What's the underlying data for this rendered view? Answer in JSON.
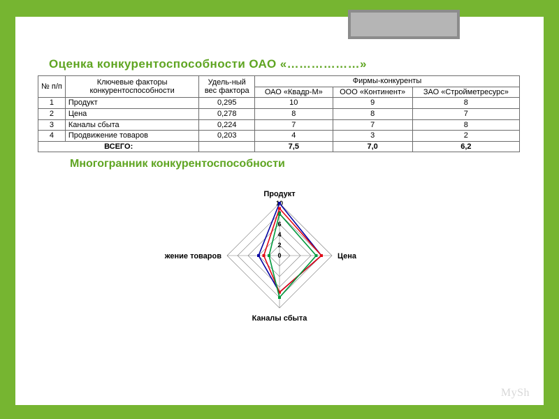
{
  "accent_color": "#5fa522",
  "frame_color": "#76b531",
  "title": "Оценка конкурентоспособности ОАО «………………»",
  "subtitle": "Многогранник конкурентоспособности",
  "watermark": "MySh",
  "table": {
    "headers": {
      "n": "№ п/п",
      "factor": "Ключевые факторы конкурентоспособности",
      "weight": "Удель-ный вес фактора",
      "comp_group": "Фирмы-конкуренты",
      "firm1": "ОАО «Квадр-М»",
      "firm2": "ООО «Континент»",
      "firm3": "ЗАО «Стройметресурс»"
    },
    "rows": [
      {
        "n": "1",
        "factor": "Продукт",
        "weight": "0,295",
        "v1": "10",
        "v2": "9",
        "v3": "8"
      },
      {
        "n": "2",
        "factor": "Цена",
        "weight": "0,278",
        "v1": "8",
        "v2": "8",
        "v3": "7"
      },
      {
        "n": "3",
        "factor": "Каналы сбыта",
        "weight": "0,224",
        "v1": "7",
        "v2": "7",
        "v3": "8"
      },
      {
        "n": "4",
        "factor": "Продвижение товаров",
        "weight": "0,203",
        "v1": "4",
        "v2": "3",
        "v3": "2"
      }
    ],
    "total": {
      "label": "ВСЕГО:",
      "weight": "",
      "v1": "7,5",
      "v2": "7,0",
      "v3": "6,2"
    }
  },
  "radar": {
    "type": "radar",
    "axes": [
      "Продукт",
      "Цена",
      "Каналы сбыта",
      "Продвижение товаров"
    ],
    "max": 10,
    "ticks": [
      0,
      2,
      4,
      6,
      8,
      10
    ],
    "grid_color": "#7a7a7a",
    "background_color": "#ffffff",
    "marker_size": 4,
    "line_width": 1.6,
    "label_fontsize": 11,
    "tick_fontsize": 9,
    "series": [
      {
        "name": "ОАО «Квадр-М»",
        "color": "#0504a2",
        "values": [
          10,
          8,
          7,
          4
        ]
      },
      {
        "name": "ООО «Континент»",
        "color": "#e30613",
        "values": [
          9,
          8,
          7,
          3
        ]
      },
      {
        "name": "ЗАО «Стройметресурс»",
        "color": "#009a3d",
        "values": [
          8,
          7,
          8,
          2
        ]
      }
    ]
  }
}
